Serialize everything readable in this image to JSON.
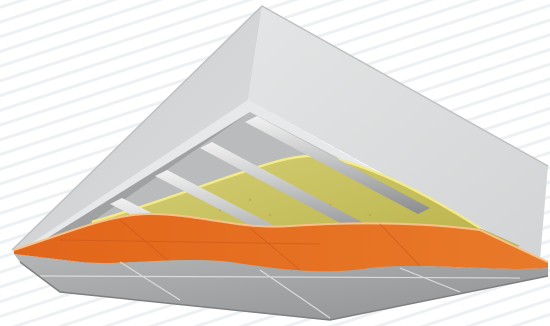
{
  "image": {
    "subject": "ceiling-insulation-cutaway",
    "layers": [
      {
        "name": "ceiling-slab",
        "color": "#d8d8d8"
      },
      {
        "name": "metal-channels",
        "color": "#9a9a9a"
      },
      {
        "name": "insulation-wool",
        "color": "#c2bb4f"
      },
      {
        "name": "orange-membrane",
        "color": "#e06a1e"
      },
      {
        "name": "plasterboard",
        "color": "#a8a8a8"
      }
    ]
  }
}
